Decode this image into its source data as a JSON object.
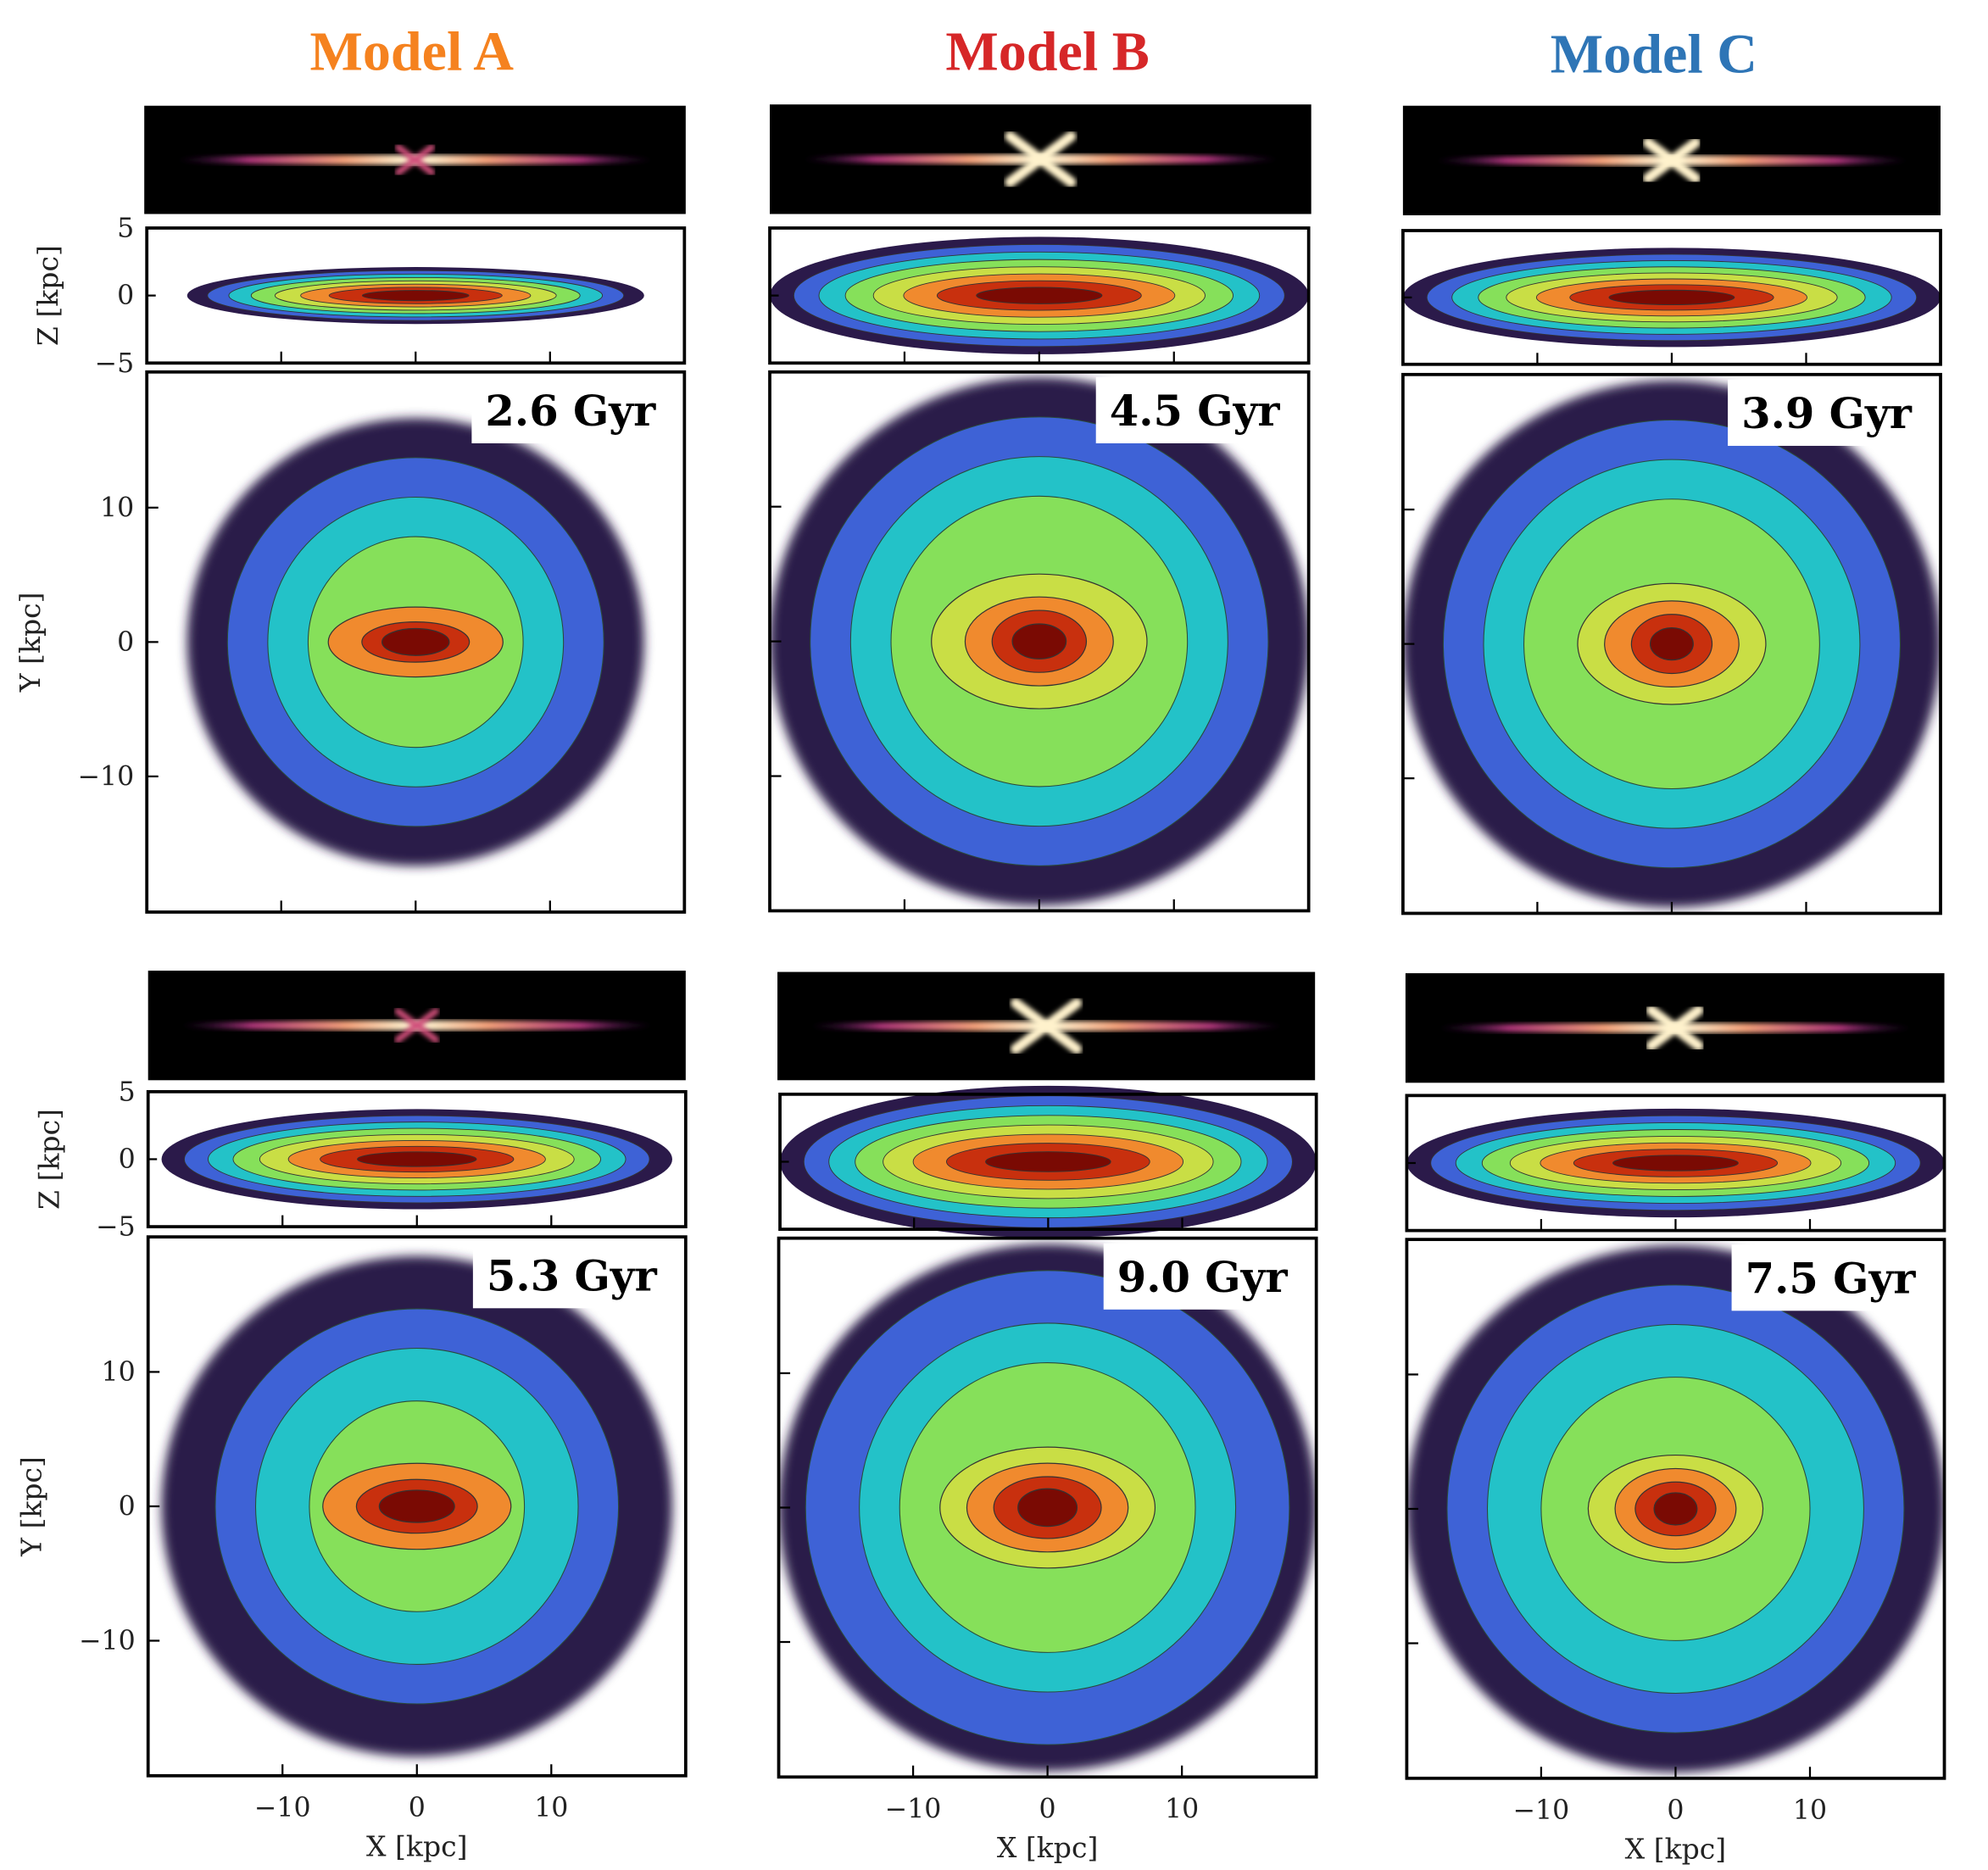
{
  "chart_data": {
    "type": "heatmap",
    "columns": [
      {
        "title": "Model A",
        "color": "#f5821f"
      },
      {
        "title": "Model B",
        "color": "#d62728"
      },
      {
        "title": "Model C",
        "color": "#2e75b6"
      }
    ],
    "rows": [
      {
        "times": [
          "2.6 Gyr",
          "4.5 Gyr",
          "3.9 Gyr"
        ]
      },
      {
        "times": [
          "5.3 Gyr",
          "9.0 Gyr",
          "7.5 Gyr"
        ]
      }
    ],
    "xlabel": "X [kpc]",
    "ylabel": "Y [kpc]",
    "zlabel": "Z [kpc]",
    "xlim": [
      -20,
      20
    ],
    "ylim": [
      -20,
      20
    ],
    "zlim": [
      -5,
      5
    ],
    "xticks": [
      "−10",
      "0",
      "10"
    ],
    "yticks": [
      "10",
      "0",
      "−10"
    ],
    "zticks": [
      "5",
      "0",
      "−5"
    ],
    "colormap_face": "turbo",
    "colormap_edge": "magma",
    "colors": {
      "outer": "#2b1a4a",
      "blue": "#3e62d6",
      "cyan": "#23c2c8",
      "green": "#86e05a",
      "yellow": "#c9de45",
      "orange": "#f08a2e",
      "red": "#c8300e",
      "darkred": "#7a0a03"
    }
  }
}
